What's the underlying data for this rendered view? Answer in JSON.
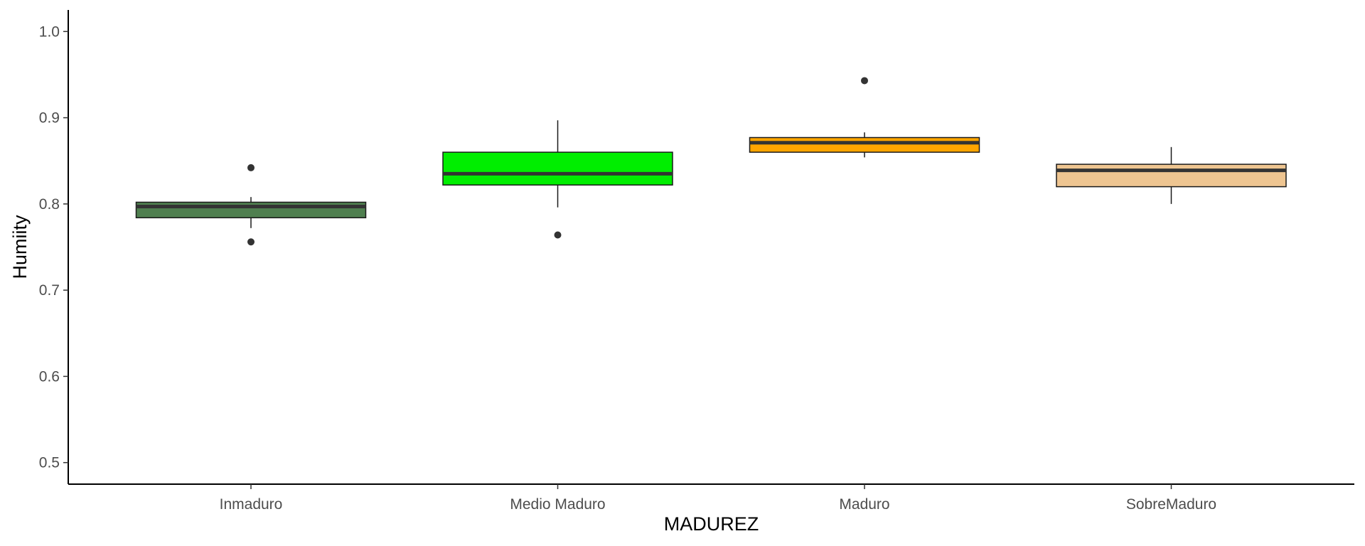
{
  "chart_data": {
    "type": "boxplot",
    "title": "",
    "xlabel": "MADUREZ",
    "ylabel": "Humiity",
    "ylim": [
      0.475,
      1.025
    ],
    "yticks": [
      0.5,
      0.6,
      0.7,
      0.8,
      0.9,
      1.0
    ],
    "ytick_labels": [
      "0.5",
      "0.6",
      "0.7",
      "0.8",
      "0.9",
      "1.0"
    ],
    "grid": false,
    "legend": "none",
    "categories": [
      "Inmaduro",
      "Medio Maduro",
      "Maduro",
      "SobreMaduro"
    ],
    "boxes": [
      {
        "category": "Inmaduro",
        "fill": "#4f7f4f",
        "whisker_low": 0.772,
        "q1": 0.784,
        "median": 0.797,
        "q3": 0.802,
        "whisker_high": 0.808,
        "outliers": [
          0.842,
          0.756
        ]
      },
      {
        "category": "Medio Maduro",
        "fill": "#00ee00",
        "whisker_low": 0.796,
        "q1": 0.822,
        "median": 0.835,
        "q3": 0.86,
        "whisker_high": 0.897,
        "outliers": [
          0.764
        ]
      },
      {
        "category": "Maduro",
        "fill": "#ffa500",
        "whisker_low": 0.854,
        "q1": 0.86,
        "median": 0.871,
        "q3": 0.877,
        "whisker_high": 0.883,
        "outliers": [
          0.943
        ]
      },
      {
        "category": "SobreMaduro",
        "fill": "#eec591",
        "whisker_low": 0.8,
        "q1": 0.82,
        "median": 0.839,
        "q3": 0.846,
        "whisker_high": 0.866,
        "outliers": []
      }
    ]
  }
}
